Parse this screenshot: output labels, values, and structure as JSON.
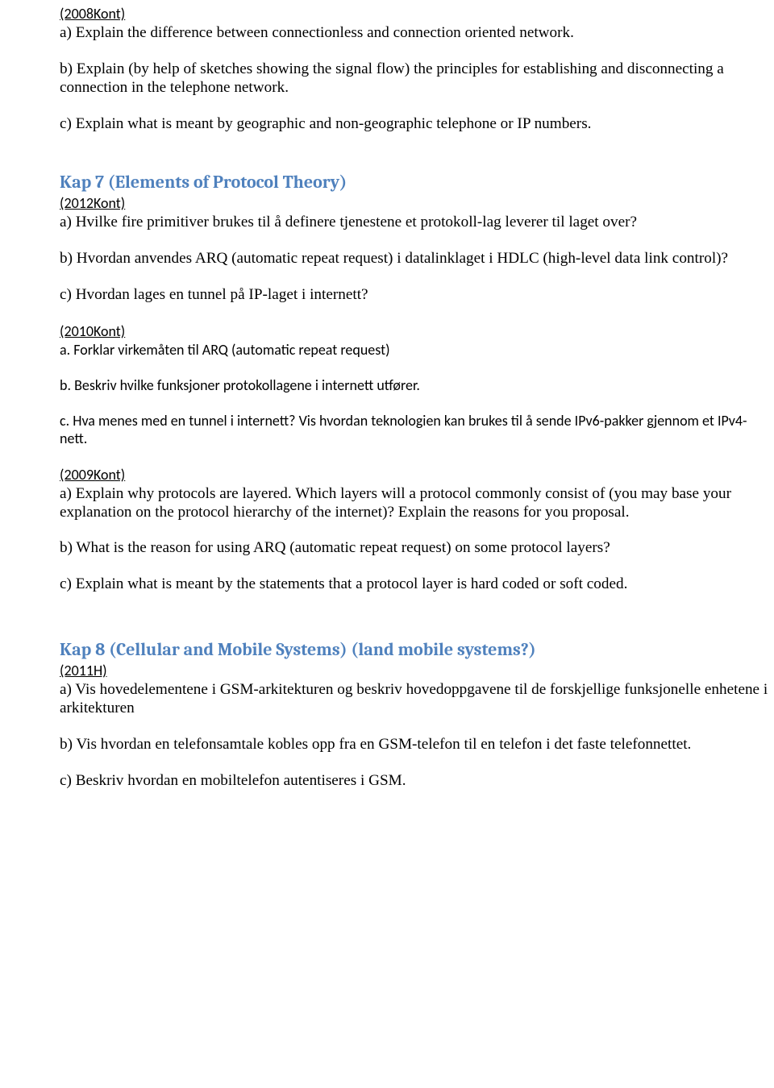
{
  "q1": {
    "tag": "(2008Kont)",
    "a": "a) Explain the difference between connectionless and connection oriented network.",
    "b": "b) Explain (by help of sketches showing the signal flow) the principles for establishing and disconnecting a connection in the telephone network.",
    "c": "c) Explain what is meant by geographic and non-geographic telephone or IP numbers."
  },
  "kap7": {
    "heading": "Kap 7 (Elements of Protocol Theory)",
    "q2012": {
      "tag": "(2012Kont)",
      "a": "a) Hvilke fire primitiver brukes til å definere tjenestene et protokoll-lag leverer til laget over?",
      "b": "b) Hvordan anvendes ARQ (automatic repeat request) i datalinklaget i HDLC (high-level data link control)?",
      "c": "c) Hvordan lages en tunnel på IP-laget i internett?"
    },
    "q2010": {
      "tag": "(2010Kont)",
      "a": "a. Forklar virkemåten til ARQ (automatic repeat request)",
      "b": "b. Beskriv hvilke funksjoner protokollagene i internett utfører.",
      "c": "c. Hva menes med en tunnel i internett? Vis hvordan teknologien kan brukes til å sende IPv6-pakker gjennom et IPv4-nett."
    },
    "q2009": {
      "tag": "(2009Kont)",
      "a": "a) Explain why protocols are layered. Which layers will a protocol commonly consist of (you may base your explanation on the protocol hierarchy of the internet)? Explain the reasons for you proposal.",
      "b": "b) What is the reason for using ARQ (automatic repeat request) on some protocol layers?",
      "c": "c) Explain what is meant by the statements that a protocol layer is hard coded or soft coded."
    }
  },
  "kap8": {
    "heading": "Kap 8 (Cellular and Mobile Systems)   (land mobile systems?)",
    "q2011": {
      "tag": "(2011H)",
      "a": "a) Vis hovedelementene i GSM-arkitekturen og beskriv hovedoppgavene til de forskjellige funksjonelle enhetene i arkitekturen",
      "b": "b) Vis hvordan en telefonsamtale kobles opp fra en GSM-telefon til en telefon i det faste telefonnettet.",
      "c": "c) Beskriv hvordan en mobiltelefon autentiseres i GSM."
    }
  }
}
